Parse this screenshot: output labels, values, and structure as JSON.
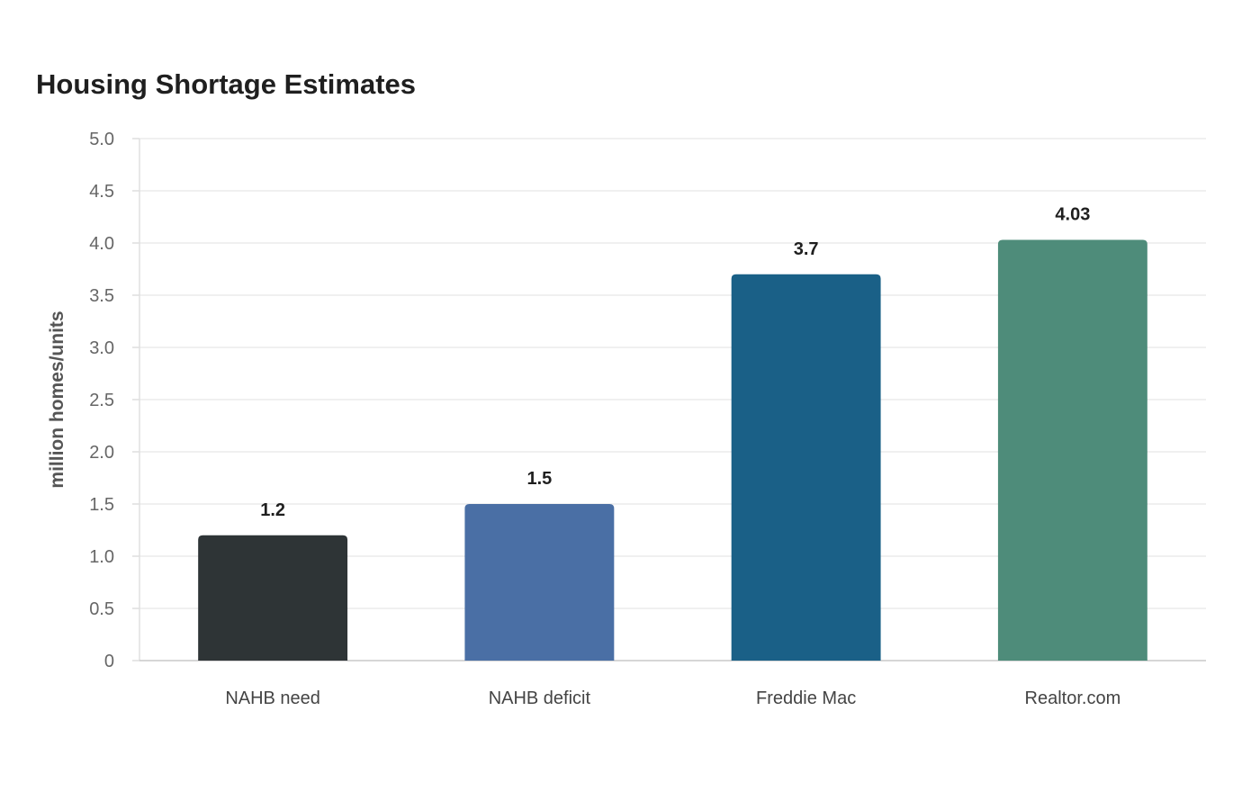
{
  "chart_data": {
    "type": "bar",
    "title": "Housing Shortage Estimates",
    "ylabel": "million homes/units",
    "xlabel": "",
    "categories": [
      "NAHB need",
      "NAHB deficit",
      "Freddie Mac",
      "Realtor.com"
    ],
    "values": [
      1.2,
      1.5,
      3.7,
      4.03
    ],
    "value_labels": [
      "1.2",
      "1.5",
      "3.7",
      "4.03"
    ],
    "colors": [
      "#2e3436",
      "#4a6fa5",
      "#1a6087",
      "#4e8c7a"
    ],
    "ylim": [
      0,
      5
    ],
    "yticks": [
      0,
      0.5,
      1.0,
      1.5,
      2.0,
      2.5,
      3.0,
      3.5,
      4.0,
      4.5,
      5.0
    ],
    "ytick_labels": [
      "0",
      "0.5",
      "1.0",
      "1.5",
      "2.0",
      "2.5",
      "3.0",
      "3.5",
      "4.0",
      "4.5",
      "5.0"
    ],
    "grid": true,
    "legend": "none"
  }
}
